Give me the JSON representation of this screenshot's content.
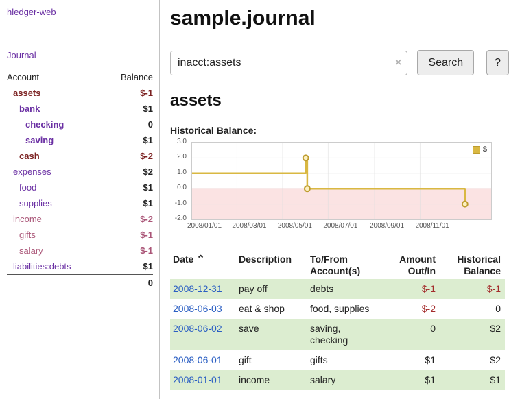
{
  "colors": {
    "link_purple": "#6a2fa3",
    "dark_red": "#7b2121",
    "rose": "#aa5577",
    "red": "#a42c2c",
    "date_blue": "#2b5fc3",
    "row_green": "#dcedd0",
    "gold": "#d9b842",
    "gold_dark": "#bd9c2f",
    "pink": "#fbe3e3",
    "pink_border": "#f3bcbc",
    "text": "#222222"
  },
  "sidebar": {
    "app_title": "hledger-web",
    "journal_link": "Journal",
    "accounts_table": {
      "headers": {
        "account": "Account",
        "balance": "Balance"
      },
      "rows": [
        {
          "account": "assets",
          "balance": "$-1",
          "indent": 1,
          "bold": true,
          "account_color": "darkred",
          "balance_color": "darkred"
        },
        {
          "account": "bank",
          "balance": "$1",
          "indent": 2,
          "bold": true,
          "account_color": "purple",
          "balance_color": "black"
        },
        {
          "account": "checking",
          "balance": "0",
          "indent": 3,
          "bold": true,
          "account_color": "purple",
          "balance_color": "black"
        },
        {
          "account": "saving",
          "balance": "$1",
          "indent": 3,
          "bold": true,
          "account_color": "purple",
          "balance_color": "black"
        },
        {
          "account": "cash",
          "balance": "$-2",
          "indent": 2,
          "bold": true,
          "account_color": "darkred",
          "balance_color": "darkred"
        },
        {
          "account": "expenses",
          "balance": "$2",
          "indent": 1,
          "bold": false,
          "account_color": "purple",
          "balance_color": "black"
        },
        {
          "account": "food",
          "balance": "$1",
          "indent": 2,
          "bold": false,
          "account_color": "purple",
          "balance_color": "black"
        },
        {
          "account": "supplies",
          "balance": "$1",
          "indent": 2,
          "bold": false,
          "account_color": "purple",
          "balance_color": "black"
        },
        {
          "account": "income",
          "balance": "$-2",
          "indent": 1,
          "bold": false,
          "account_color": "rose",
          "balance_color": "rose"
        },
        {
          "account": "gifts",
          "balance": "$-1",
          "indent": 2,
          "bold": false,
          "account_color": "rose",
          "balance_color": "rose"
        },
        {
          "account": "salary",
          "balance": "$-1",
          "indent": 2,
          "bold": false,
          "account_color": "rose",
          "balance_color": "rose"
        },
        {
          "account": "liabilities:debts",
          "balance": "$1",
          "indent": 1,
          "bold": false,
          "account_color": "purple",
          "balance_color": "black"
        }
      ],
      "total": "0"
    }
  },
  "header": {
    "title": "sample.journal"
  },
  "search": {
    "value": "inacct:assets",
    "clear_icon": "×",
    "button_label": "Search",
    "help_label": "?"
  },
  "content": {
    "section_title": "assets",
    "chart_title": "Historical Balance:"
  },
  "chart_data": {
    "type": "line",
    "title": "Historical Balance",
    "legend_position": "top-right",
    "x_range": [
      0,
      400
    ],
    "y_range": [
      -2,
      3
    ],
    "y_ticks": [
      {
        "label": "3.0",
        "v": 3
      },
      {
        "label": "2.0",
        "v": 2
      },
      {
        "label": "1.0",
        "v": 1
      },
      {
        "label": "0.0",
        "v": 0
      },
      {
        "label": "-1.0",
        "v": -1
      },
      {
        "label": "-2.0",
        "v": -2
      }
    ],
    "x_ticks": [
      {
        "label": "2008/01/01",
        "x": 0
      },
      {
        "label": "2008/03/01",
        "x": 60
      },
      {
        "label": "2008/05/01",
        "x": 121
      },
      {
        "label": "2008/07/01",
        "x": 182
      },
      {
        "label": "2008/09/01",
        "x": 244
      },
      {
        "label": "2008/11/01",
        "x": 305
      }
    ],
    "series": [
      {
        "name": "$",
        "balances": [
          {
            "date": "2008-01-01",
            "balance": 1
          },
          {
            "date": "2008-06-01",
            "balance": 2
          },
          {
            "date": "2008-06-02",
            "balance": 2
          },
          {
            "date": "2008-06-03",
            "balance": 0
          },
          {
            "date": "2008-12-31",
            "balance": -1
          }
        ],
        "points": [
          {
            "x": 0,
            "y": 1
          },
          {
            "x": 152,
            "y": 1
          },
          {
            "x": 152,
            "y": 2
          },
          {
            "x": 154,
            "y": 2
          },
          {
            "x": 154,
            "y": 0
          },
          {
            "x": 365,
            "y": 0
          },
          {
            "x": 365,
            "y": -1
          }
        ],
        "markers": [
          {
            "x": 152,
            "y": 2
          },
          {
            "x": 154,
            "y": 0
          },
          {
            "x": 365,
            "y": -1
          }
        ]
      }
    ]
  },
  "register": {
    "sort_icon": "⌃",
    "headers": [
      {
        "label": "Date"
      },
      {
        "label": "Description"
      },
      {
        "label": "To/From Account(s)"
      },
      {
        "label": "Amount Out/In"
      },
      {
        "label": "Historical Balance"
      }
    ],
    "rows": [
      {
        "date": "2008-12-31",
        "description": "pay off",
        "accounts": "debts",
        "amount": "$-1",
        "amount_negative": true,
        "balance": "$-1",
        "balance_negative": true,
        "highlight": true
      },
      {
        "date": "2008-06-03",
        "description": "eat & shop",
        "accounts": "food, supplies",
        "amount": "$-2",
        "amount_negative": true,
        "balance": "0",
        "balance_negative": false,
        "highlight": false
      },
      {
        "date": "2008-06-02",
        "description": "save",
        "accounts": "saving, checking",
        "amount": "0",
        "amount_negative": false,
        "balance": "$2",
        "balance_negative": false,
        "highlight": true
      },
      {
        "date": "2008-06-01",
        "description": "gift",
        "accounts": "gifts",
        "amount": "$1",
        "amount_negative": false,
        "balance": "$2",
        "balance_negative": false,
        "highlight": false
      },
      {
        "date": "2008-01-01",
        "description": "income",
        "accounts": "salary",
        "amount": "$1",
        "amount_negative": false,
        "balance": "$1",
        "balance_negative": false,
        "highlight": true
      }
    ]
  }
}
